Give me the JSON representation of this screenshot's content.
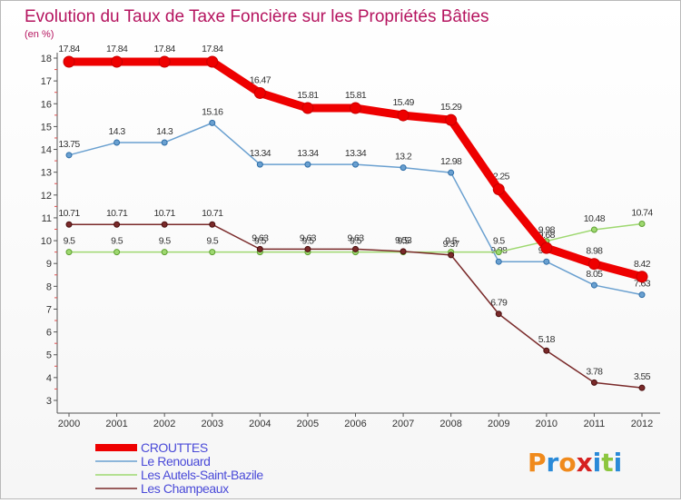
{
  "chart_data": {
    "type": "line",
    "title": "Evolution du Taux de Taxe Foncière sur les Propriétés Bâties",
    "ylabel": "(en %)",
    "xlabel": "",
    "x": [
      "2000",
      "2001",
      "2002",
      "2003",
      "2004",
      "2005",
      "2006",
      "2007",
      "2008",
      "2009",
      "2010",
      "2011",
      "2012"
    ],
    "ylim": [
      3,
      18
    ],
    "yticks": [
      "3",
      "4",
      "5",
      "6",
      "7",
      "8",
      "9",
      "10",
      "11",
      "12",
      "13",
      "14",
      "15",
      "16",
      "17",
      "18"
    ],
    "grid": false,
    "legend_position": "bottom-left",
    "series": [
      {
        "name": "CROUTTES",
        "color": "#ee0000",
        "line_width": 9,
        "values": [
          17.84,
          17.84,
          17.84,
          17.84,
          16.47,
          15.81,
          15.81,
          15.49,
          15.29,
          12.25,
          9.68,
          8.98,
          8.42
        ],
        "labels": [
          "17.84",
          "17.84",
          "17.84",
          "17.84",
          "16.47",
          "15.81",
          "15.81",
          "15.49",
          "15.29",
          "12.25",
          "9.68",
          "8.98",
          "8.42"
        ]
      },
      {
        "name": "Le Renouard",
        "color": "#6aa0d0",
        "line_width": 1.5,
        "values": [
          13.75,
          14.3,
          14.3,
          15.16,
          13.34,
          13.34,
          13.34,
          13.2,
          12.98,
          9.08,
          9.08,
          8.05,
          7.63
        ],
        "labels": [
          "13.75",
          "14.3",
          "14.3",
          "15.16",
          "13.34",
          "13.34",
          "13.34",
          "13.2",
          "12.98",
          "9.08",
          "9.08",
          "8.05",
          "7.63"
        ]
      },
      {
        "name": "Les Autels-Saint-Bazile",
        "color": "#9ed870",
        "line_width": 1.5,
        "values": [
          9.5,
          9.5,
          9.5,
          9.5,
          9.5,
          9.5,
          9.5,
          9.5,
          9.5,
          9.5,
          9.98,
          10.48,
          10.74
        ],
        "labels": [
          "9.5",
          "9.5",
          "9.5",
          "9.5",
          "9.5",
          "9.5",
          "9.5",
          "9.5",
          "9.5",
          "9.5",
          "9.98",
          "10.48",
          "10.74"
        ]
      },
      {
        "name": "Les Champeaux",
        "color": "#7a2a2a",
        "line_width": 1.5,
        "values": [
          10.71,
          10.71,
          10.71,
          10.71,
          9.63,
          9.63,
          9.63,
          9.53,
          9.37,
          6.79,
          5.18,
          3.78,
          3.55
        ],
        "labels": [
          "10.71",
          "10.71",
          "10.71",
          "10.71",
          "9.63",
          "9.63",
          "9.63",
          "9.53",
          "9.37",
          "6.79",
          "5.18",
          "3.78",
          "3.55"
        ]
      }
    ]
  },
  "logo": {
    "text": "Proxiti",
    "letters": [
      "P",
      "r",
      "o",
      "x",
      "i",
      "t",
      "i"
    ],
    "colors": [
      "#f08a1c",
      "#2a8ad8",
      "#f08a1c",
      "#d62020",
      "#2a8ad8",
      "#8cc63f",
      "#2a8ad8"
    ]
  }
}
